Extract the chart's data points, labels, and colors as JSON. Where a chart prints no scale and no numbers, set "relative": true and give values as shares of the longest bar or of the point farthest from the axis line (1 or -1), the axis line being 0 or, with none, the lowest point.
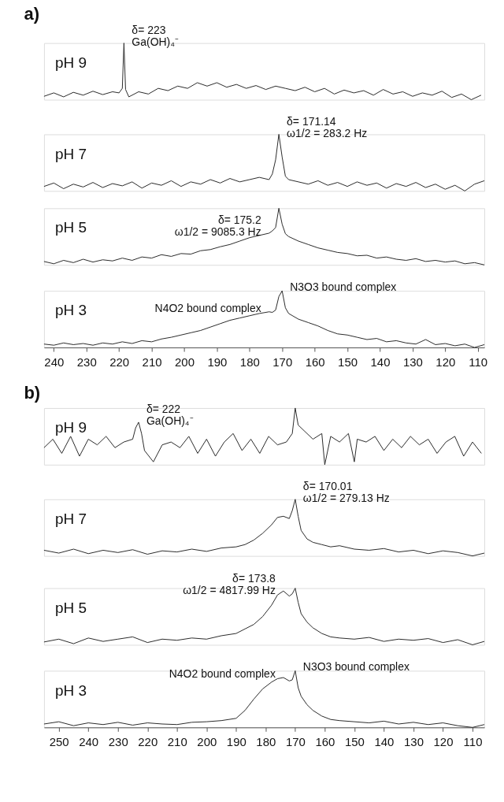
{
  "chart_data": [
    {
      "type": "line",
      "title": "a)",
      "relative": true,
      "xlim": [
        243,
        108
      ],
      "tick_labels": false,
      "x": [
        243,
        240,
        237,
        234,
        231,
        228,
        225,
        222,
        220,
        219,
        218.5,
        218,
        217,
        214,
        211,
        208,
        205,
        202,
        199,
        196,
        193,
        190,
        187,
        184,
        181,
        178,
        175,
        172,
        169,
        166,
        163,
        160,
        157,
        154,
        151,
        148,
        145,
        142,
        139,
        136,
        133,
        130,
        127,
        124,
        121,
        118,
        115,
        112,
        109
      ],
      "series": [
        {
          "name": "pH 9",
          "color": "#2b2b2b",
          "values": [
            0.06,
            0.12,
            0.05,
            0.13,
            0.08,
            0.15,
            0.09,
            0.14,
            0.12,
            0.2,
            1,
            0.18,
            0.05,
            0.14,
            0.1,
            0.2,
            0.16,
            0.24,
            0.2,
            0.3,
            0.24,
            0.3,
            0.22,
            0.27,
            0.2,
            0.25,
            0.18,
            0.24,
            0.2,
            0.16,
            0.22,
            0.14,
            0.2,
            0.1,
            0.17,
            0.12,
            0.16,
            0.08,
            0.18,
            0.1,
            0.14,
            0.06,
            0.12,
            0.08,
            0.15,
            0.04,
            0.1,
            0,
            0.08
          ]
        }
      ],
      "annotations": [
        {
          "text": "δ= 223",
          "x": 218.5,
          "y": 1
        },
        {
          "text": "Ga(OH)₄⁻",
          "x": 218.5,
          "y": 1
        }
      ]
    },
    {
      "type": "line",
      "relative": true,
      "xlim": [
        243,
        108
      ],
      "tick_labels": false,
      "x": [
        243,
        240,
        237,
        234,
        231,
        228,
        225,
        222,
        219,
        216,
        213,
        210,
        207,
        204,
        201,
        198,
        195,
        192,
        189,
        186,
        183,
        180,
        177,
        174,
        173,
        172,
        171,
        170,
        169,
        168,
        165,
        162,
        159,
        156,
        153,
        150,
        147,
        144,
        141,
        138,
        135,
        132,
        129,
        126,
        123,
        120,
        117,
        114,
        111,
        108
      ],
      "series": [
        {
          "name": "pH 7",
          "color": "#2b2b2b",
          "values": [
            0.08,
            0.14,
            0.04,
            0.12,
            0.07,
            0.15,
            0.06,
            0.13,
            0.09,
            0.16,
            0.05,
            0.14,
            0.1,
            0.18,
            0.08,
            0.16,
            0.12,
            0.2,
            0.14,
            0.22,
            0.16,
            0.2,
            0.24,
            0.2,
            0.3,
            0.55,
            1,
            0.6,
            0.26,
            0.2,
            0.16,
            0.12,
            0.18,
            0.1,
            0.15,
            0.08,
            0.16,
            0.1,
            0.14,
            0.05,
            0.13,
            0.08,
            0.15,
            0.06,
            0.12,
            0.03,
            0.1,
            0,
            0.12,
            0.18
          ]
        }
      ],
      "annotations": [
        {
          "text": "δ= 171.14",
          "x": 171,
          "y": 1
        },
        {
          "text": "ω1/2 = 283.2 Hz",
          "x": 171,
          "y": 1
        }
      ]
    },
    {
      "type": "line",
      "relative": true,
      "xlim": [
        243,
        108
      ],
      "tick_labels": false,
      "x": [
        243,
        240,
        237,
        234,
        231,
        228,
        225,
        222,
        219,
        216,
        213,
        210,
        207,
        204,
        201,
        198,
        195,
        192,
        189,
        186,
        183,
        180,
        177,
        174,
        173,
        172,
        171,
        170,
        169,
        168,
        165,
        162,
        159,
        156,
        153,
        150,
        147,
        144,
        141,
        138,
        135,
        132,
        129,
        126,
        123,
        120,
        117,
        114,
        111,
        108
      ],
      "series": [
        {
          "name": "pH 5",
          "color": "#2b2b2b",
          "values": [
            0.06,
            0.02,
            0.08,
            0.04,
            0.1,
            0.05,
            0.09,
            0.07,
            0.12,
            0.08,
            0.14,
            0.12,
            0.18,
            0.15,
            0.2,
            0.19,
            0.25,
            0.27,
            0.32,
            0.36,
            0.42,
            0.48,
            0.52,
            0.56,
            0.6,
            0.66,
            1,
            0.72,
            0.55,
            0.5,
            0.42,
            0.36,
            0.3,
            0.26,
            0.22,
            0.2,
            0.16,
            0.17,
            0.12,
            0.14,
            0.1,
            0.08,
            0.11,
            0.06,
            0.08,
            0.05,
            0.07,
            0.02,
            0.04,
            0
          ]
        }
      ],
      "annotations": [
        {
          "text": "δ= 175.2",
          "x": 174,
          "y": 0.56
        },
        {
          "text": "ω1/2 = 9085.3 Hz",
          "x": 174,
          "y": 0.56
        }
      ]
    },
    {
      "type": "line",
      "relative": true,
      "xlim": [
        243,
        108
      ],
      "tick_labels": "x",
      "xticks": [
        240,
        230,
        220,
        210,
        200,
        190,
        180,
        170,
        160,
        150,
        140,
        130,
        120,
        110
      ],
      "x": [
        243,
        240,
        237,
        234,
        231,
        228,
        225,
        222,
        219,
        216,
        213,
        210,
        207,
        204,
        201,
        198,
        195,
        192,
        189,
        186,
        183,
        180,
        177,
        174,
        173,
        172,
        171,
        170,
        169,
        168,
        165,
        162,
        159,
        156,
        153,
        150,
        147,
        144,
        141,
        138,
        135,
        132,
        129,
        126,
        123,
        120,
        117,
        114,
        111,
        108
      ],
      "series": [
        {
          "name": "pH 3",
          "color": "#2b2b2b",
          "values": [
            0.06,
            0.04,
            0.08,
            0.05,
            0.07,
            0.04,
            0.08,
            0.06,
            0.1,
            0.07,
            0.12,
            0.1,
            0.15,
            0.18,
            0.22,
            0.26,
            0.3,
            0.36,
            0.42,
            0.48,
            0.52,
            0.56,
            0.6,
            0.63,
            0.62,
            0.66,
            0.9,
            1,
            0.7,
            0.6,
            0.5,
            0.44,
            0.38,
            0.3,
            0.24,
            0.22,
            0.18,
            0.14,
            0.16,
            0.1,
            0.12,
            0.08,
            0.06,
            0.14,
            0.05,
            0.07,
            0.03,
            0.06,
            0,
            0.05
          ]
        }
      ],
      "annotations": [
        {
          "text": "N4O2 bound complex",
          "x": 174,
          "y": 0.63
        },
        {
          "text": "N3O3 bound complex",
          "x": 170,
          "y": 1
        }
      ]
    },
    {
      "type": "line",
      "title": "b)",
      "relative": true,
      "xlim": [
        255,
        106
      ],
      "tick_labels": false,
      "x": [
        255,
        252,
        249,
        246,
        243,
        240,
        237,
        234,
        231,
        228,
        225,
        224,
        223,
        222,
        221,
        218,
        215,
        212,
        209,
        206,
        203,
        200,
        197,
        194,
        191,
        188,
        185,
        182,
        179,
        176,
        173,
        171,
        170,
        169,
        167,
        164,
        161,
        160,
        158,
        155,
        152,
        150,
        149,
        146,
        143,
        140,
        137,
        134,
        131,
        128,
        125,
        122,
        119,
        116,
        113,
        110,
        107
      ],
      "series": [
        {
          "name": "pH 9",
          "color": "#2b2b2b",
          "values": [
            0.3,
            0.45,
            0.2,
            0.5,
            0.15,
            0.45,
            0.35,
            0.5,
            0.3,
            0.4,
            0.45,
            0.65,
            0.75,
            0.55,
            0.25,
            0.05,
            0.35,
            0.4,
            0.3,
            0.5,
            0.2,
            0.45,
            0.15,
            0.4,
            0.55,
            0.25,
            0.45,
            0.2,
            0.5,
            0.35,
            0.4,
            0.55,
            1,
            0.7,
            0.6,
            0.45,
            0.55,
            0,
            0.5,
            0.4,
            0.55,
            0.05,
            0.45,
            0.4,
            0.5,
            0.25,
            0.45,
            0.3,
            0.5,
            0.35,
            0.45,
            0.2,
            0.4,
            0.5,
            0.15,
            0.4,
            0.2
          ]
        }
      ],
      "annotations": [
        {
          "text": "δ= 222",
          "x": 223,
          "y": 0.75
        },
        {
          "text": "Ga(OH)₄⁻",
          "x": 223,
          "y": 0.75
        }
      ]
    },
    {
      "type": "line",
      "relative": true,
      "xlim": [
        255,
        106
      ],
      "tick_labels": false,
      "x": [
        255,
        250,
        245,
        240,
        235,
        230,
        225,
        220,
        215,
        210,
        205,
        200,
        195,
        190,
        187,
        184,
        181,
        178,
        176,
        174,
        172,
        171,
        170,
        169,
        168,
        166,
        164,
        161,
        158,
        155,
        150,
        145,
        140,
        135,
        130,
        125,
        120,
        115,
        110,
        106
      ],
      "series": [
        {
          "name": "pH 7",
          "color": "#2b2b2b",
          "values": [
            0.1,
            0.05,
            0.12,
            0.04,
            0.1,
            0.06,
            0.11,
            0.03,
            0.09,
            0.07,
            0.12,
            0.08,
            0.14,
            0.16,
            0.2,
            0.28,
            0.4,
            0.55,
            0.68,
            0.7,
            0.66,
            0.8,
            1,
            0.7,
            0.45,
            0.3,
            0.24,
            0.2,
            0.16,
            0.18,
            0.12,
            0.1,
            0.13,
            0.07,
            0.1,
            0.04,
            0.09,
            0.06,
            0,
            0.05
          ]
        }
      ],
      "annotations": [
        {
          "text": "δ= 170.01",
          "x": 170,
          "y": 1
        },
        {
          "text": "ω1/2 = 279.13 Hz",
          "x": 170,
          "y": 1
        }
      ]
    },
    {
      "type": "line",
      "relative": true,
      "xlim": [
        255,
        106
      ],
      "tick_labels": false,
      "x": [
        255,
        250,
        245,
        240,
        235,
        230,
        225,
        220,
        215,
        210,
        205,
        200,
        195,
        190,
        187,
        184,
        181,
        178,
        176,
        174,
        172,
        171,
        170,
        169,
        168,
        166,
        164,
        161,
        158,
        155,
        150,
        145,
        140,
        135,
        130,
        125,
        120,
        115,
        110,
        106
      ],
      "series": [
        {
          "name": "pH 5",
          "color": "#2b2b2b",
          "values": [
            0.05,
            0.1,
            0.02,
            0.12,
            0.06,
            0.1,
            0.14,
            0.04,
            0.1,
            0.08,
            0.12,
            0.1,
            0.16,
            0.2,
            0.28,
            0.36,
            0.5,
            0.7,
            0.88,
            0.95,
            0.86,
            0.9,
            1,
            0.75,
            0.55,
            0.4,
            0.3,
            0.2,
            0.14,
            0.12,
            0.1,
            0.13,
            0.06,
            0.1,
            0.08,
            0.11,
            0.04,
            0.09,
            0,
            0.06
          ]
        }
      ],
      "annotations": [
        {
          "text": "δ= 173.8",
          "x": 174,
          "y": 0.95
        },
        {
          "text": "ω1/2 = 4817.99 Hz",
          "x": 174,
          "y": 0.95
        }
      ]
    },
    {
      "type": "line",
      "relative": true,
      "xlim": [
        255,
        106
      ],
      "tick_labels": "x",
      "xticks": [
        250,
        240,
        230,
        220,
        210,
        200,
        190,
        180,
        170,
        160,
        150,
        140,
        130,
        120,
        110
      ],
      "x": [
        255,
        250,
        245,
        240,
        235,
        230,
        225,
        220,
        215,
        210,
        205,
        200,
        195,
        190,
        187,
        184,
        181,
        178,
        176,
        174,
        172,
        171,
        170,
        169,
        168,
        166,
        164,
        161,
        158,
        155,
        150,
        145,
        140,
        135,
        130,
        125,
        120,
        115,
        110,
        106
      ],
      "series": [
        {
          "name": "pH 3",
          "color": "#2b2b2b",
          "values": [
            0.06,
            0.1,
            0.03,
            0.08,
            0.05,
            0.09,
            0.04,
            0.08,
            0.06,
            0.05,
            0.09,
            0.1,
            0.12,
            0.16,
            0.3,
            0.5,
            0.68,
            0.8,
            0.86,
            0.88,
            0.82,
            0.84,
            1,
            0.7,
            0.55,
            0.4,
            0.3,
            0.2,
            0.14,
            0.12,
            0.1,
            0.08,
            0.11,
            0.06,
            0.09,
            0.05,
            0.08,
            0.03,
            0,
            0.05
          ]
        }
      ],
      "annotations": [
        {
          "text": "N4O2 bound complex",
          "x": 174,
          "y": 0.88
        },
        {
          "text": "N3O3 bound complex",
          "x": 170,
          "y": 1
        }
      ]
    }
  ]
}
